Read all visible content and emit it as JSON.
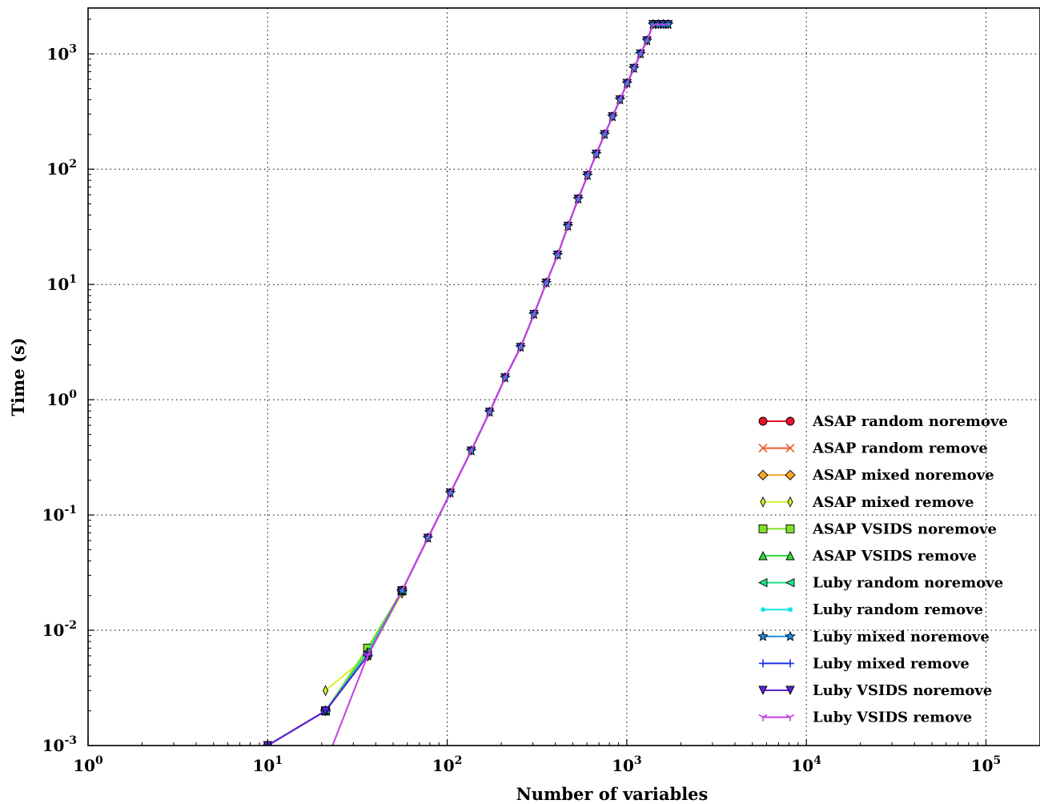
{
  "chart_data": {
    "type": "line",
    "title": "",
    "xlabel": "Number of variables",
    "ylabel": "Time (s)",
    "x_scale": "log",
    "y_scale": "log",
    "xlim": [
      1,
      200000
    ],
    "ylim": [
      0.001,
      2500
    ],
    "x_ticks": [
      {
        "value": 1,
        "base": "10",
        "exp": "0"
      },
      {
        "value": 10,
        "base": "10",
        "exp": "1"
      },
      {
        "value": 100,
        "base": "10",
        "exp": "2"
      },
      {
        "value": 1000,
        "base": "10",
        "exp": "3"
      },
      {
        "value": 10000,
        "base": "10",
        "exp": "4"
      },
      {
        "value": 100000,
        "base": "10",
        "exp": "5"
      }
    ],
    "y_ticks": [
      {
        "value": 0.001,
        "base": "10",
        "exp": "-3"
      },
      {
        "value": 0.01,
        "base": "10",
        "exp": "-2"
      },
      {
        "value": 0.1,
        "base": "10",
        "exp": "-1"
      },
      {
        "value": 1,
        "base": "10",
        "exp": "0"
      },
      {
        "value": 10,
        "base": "10",
        "exp": "1"
      },
      {
        "value": 100,
        "base": "10",
        "exp": "2"
      },
      {
        "value": 1000,
        "base": "10",
        "exp": "3"
      }
    ],
    "grid": true,
    "legend_position": "lower-right",
    "shared_x": [
      10,
      21,
      36,
      56,
      78,
      104,
      136,
      172,
      210,
      256,
      304,
      356,
      412,
      470,
      536,
      604,
      676,
      752,
      832,
      916,
      1004,
      1096,
      1192,
      1296,
      1400,
      1500,
      1600,
      1700
    ],
    "shared_y": [
      0.001,
      0.002,
      0.006,
      0.022,
      0.063,
      0.155,
      0.36,
      0.78,
      1.55,
      2.85,
      5.5,
      10.3,
      18.0,
      32.0,
      55.0,
      88.0,
      135.0,
      200.0,
      285.0,
      400.0,
      555.0,
      750.0,
      1000.0,
      1300.0,
      1800.0,
      1800.0,
      1800.0,
      1800.0
    ],
    "series": [
      {
        "name": "ASAP random noremove",
        "color": "#e8102a",
        "marker": "circle",
        "x": [
          10,
          21,
          36,
          56
        ],
        "y": [
          0.001,
          0.002,
          0.006,
          0.022
        ]
      },
      {
        "name": "ASAP random remove",
        "color": "#f0582a",
        "marker": "x",
        "x": [
          10,
          21,
          36,
          56
        ],
        "y": [
          0.001,
          0.002,
          0.006,
          0.022
        ]
      },
      {
        "name": "ASAP mixed noremove",
        "color": "#f5a623",
        "marker": "diamond",
        "x": [
          10,
          21,
          36,
          56
        ],
        "y": [
          0.001,
          0.002,
          0.006,
          0.022
        ]
      },
      {
        "name": "ASAP mixed remove",
        "color": "#d8ef2c",
        "marker": "thin-diamond",
        "x": [
          21,
          36,
          56
        ],
        "y": [
          0.003,
          0.006,
          0.021
        ]
      },
      {
        "name": "ASAP VSIDS noremove",
        "color": "#7fe02a",
        "marker": "square",
        "x": [
          21,
          36,
          56
        ],
        "y": [
          0.002,
          0.007,
          0.022
        ]
      },
      {
        "name": "ASAP VSIDS remove",
        "color": "#2edb3a",
        "marker": "triangle-up",
        "x": [
          21,
          36,
          56
        ],
        "y": [
          0.002,
          0.0065,
          0.022
        ]
      },
      {
        "name": "Luby random noremove",
        "color": "#1be28a",
        "marker": "triangle-left",
        "x": [
          21,
          36,
          56
        ],
        "y": [
          0.002,
          0.0065,
          0.022
        ]
      },
      {
        "name": "Luby random remove",
        "color": "#18e3ea",
        "marker": "point",
        "x": [
          21,
          36,
          56
        ],
        "y": [
          0.002,
          0.006,
          0.022
        ]
      },
      {
        "name": "Luby mixed noremove",
        "color": "#1b8fe8",
        "marker": "star",
        "x": [
          21,
          36,
          56
        ],
        "y": [
          0.002,
          0.006,
          0.022
        ]
      },
      {
        "name": "Luby mixed remove",
        "color": "#1a35e8",
        "marker": "plus",
        "x": [
          10,
          21,
          36,
          56
        ],
        "y": [
          0.001,
          0.002,
          0.006,
          0.022
        ]
      },
      {
        "name": "Luby VSIDS noremove",
        "color": "#5a22d8",
        "marker": "triangle-down",
        "x": [
          10,
          21,
          36,
          56
        ],
        "y": [
          0.001,
          0.002,
          0.006,
          0.022
        ]
      },
      {
        "name": "Luby VSIDS remove",
        "color": "#c33ee0",
        "marker": "tri-down",
        "x": [
          21,
          36,
          56
        ],
        "y": [
          0.0007,
          0.006,
          0.022
        ]
      }
    ]
  }
}
